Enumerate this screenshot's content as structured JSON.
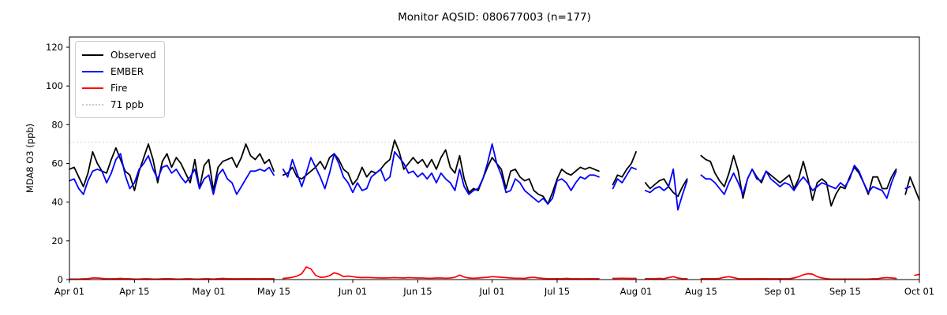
{
  "title": "Monitor AQSID: 080677003 (n=177)",
  "axes": {
    "ylabel": "MDA8 O3 (ppb)",
    "y_ticks": [
      0,
      20,
      40,
      60,
      80,
      100,
      120
    ],
    "x_tick_labels": [
      "Apr 01",
      "Apr 15",
      "May 01",
      "May 15",
      "Jun 01",
      "Jun 15",
      "Jul 01",
      "Jul 15",
      "Aug 01",
      "Aug 15",
      "Sep 01",
      "Sep 15",
      "Oct 01"
    ],
    "x_tick_days": [
      0,
      14,
      30,
      44,
      61,
      75,
      91,
      105,
      122,
      136,
      153,
      167,
      183
    ]
  },
  "legend": [
    {
      "label": "Observed",
      "color": "#000000",
      "style": "solid"
    },
    {
      "label": "EMBER",
      "color": "#0000ff",
      "style": "solid"
    },
    {
      "label": "Fire",
      "color": "#ff0000",
      "style": "solid"
    },
    {
      "label": "71 ppb",
      "color": "#c8c8c8",
      "style": "dotted"
    }
  ],
  "chart_data": {
    "type": "line",
    "title": "Monitor AQSID: 080677003 (n=177)",
    "xlabel": "",
    "ylabel": "MDA8 O3 (ppb)",
    "ylim": [
      0,
      125
    ],
    "grid": false,
    "legend_position": "upper left",
    "x_unit": "days since Apr 01 (daily values, Apr 01 - Oct 01; null = missing day)",
    "reference_line": {
      "value": 71,
      "label": "71 ppb",
      "color": "#c8c8c8",
      "style": "dotted"
    },
    "series": [
      {
        "name": "Observed",
        "color": "#000000",
        "values": [
          57,
          58,
          53,
          48,
          55,
          66,
          60,
          56,
          55,
          62,
          68,
          62,
          56,
          54,
          46,
          56,
          63,
          70,
          62,
          50,
          61,
          65,
          58,
          63,
          60,
          55,
          50,
          62,
          47,
          59,
          62,
          46,
          58,
          61,
          62,
          63,
          58,
          63,
          70,
          64,
          62,
          65,
          60,
          62,
          56,
          null,
          54,
          55,
          58,
          53,
          52,
          54,
          56,
          58,
          61,
          57,
          63,
          65,
          62,
          57,
          55,
          49,
          52,
          58,
          53,
          56,
          55,
          57,
          60,
          62,
          72,
          66,
          57,
          60,
          63,
          60,
          62,
          58,
          62,
          57,
          63,
          67,
          58,
          55,
          64,
          52,
          45,
          47,
          46,
          52,
          58,
          63,
          60,
          57,
          47,
          56,
          57,
          53,
          51,
          52,
          46,
          44,
          43,
          39,
          45,
          52,
          57,
          55,
          54,
          56,
          58,
          57,
          58,
          57,
          56,
          null,
          null,
          49,
          54,
          53,
          57,
          60,
          66,
          null,
          50,
          47,
          49,
          51,
          52,
          48,
          45,
          43,
          48,
          52,
          null,
          null,
          64,
          62,
          61,
          55,
          51,
          48,
          55,
          64,
          56,
          42,
          52,
          57,
          53,
          50,
          56,
          54,
          52,
          50,
          52,
          54,
          47,
          52,
          61,
          52,
          41,
          50,
          52,
          50,
          38,
          44,
          48,
          47,
          53,
          58,
          55,
          50,
          44,
          53,
          53,
          47,
          47,
          53,
          57,
          null,
          44,
          53,
          47,
          41
        ]
      },
      {
        "name": "EMBER",
        "color": "#0000ff",
        "values": [
          51,
          52,
          47,
          44,
          51,
          56,
          57,
          56,
          50,
          55,
          62,
          65,
          54,
          47,
          50,
          57,
          60,
          64,
          57,
          52,
          58,
          59,
          55,
          57,
          53,
          50,
          53,
          57,
          47,
          52,
          54,
          44,
          54,
          57,
          52,
          50,
          44,
          48,
          52,
          56,
          56,
          57,
          56,
          58,
          54,
          null,
          57,
          53,
          62,
          55,
          48,
          55,
          63,
          58,
          53,
          47,
          55,
          65,
          60,
          53,
          50,
          45,
          50,
          46,
          47,
          53,
          55,
          57,
          51,
          53,
          66,
          63,
          60,
          55,
          56,
          53,
          55,
          52,
          55,
          50,
          55,
          52,
          50,
          46,
          57,
          48,
          44,
          46,
          47,
          52,
          60,
          70,
          60,
          54,
          45,
          46,
          52,
          50,
          46,
          44,
          42,
          40,
          42,
          39,
          42,
          51,
          52,
          50,
          46,
          50,
          53,
          52,
          54,
          54,
          53,
          null,
          null,
          47,
          52,
          50,
          54,
          58,
          57,
          null,
          46,
          45,
          47,
          48,
          46,
          48,
          57,
          36,
          44,
          51,
          null,
          null,
          54,
          52,
          52,
          50,
          47,
          44,
          50,
          55,
          50,
          44,
          52,
          57,
          52,
          51,
          56,
          52,
          50,
          48,
          50,
          49,
          46,
          50,
          53,
          50,
          46,
          48,
          50,
          49,
          48,
          47,
          50,
          48,
          52,
          59,
          56,
          50,
          45,
          48,
          47,
          46,
          42,
          50,
          56,
          null,
          47,
          48,
          null,
          null
        ]
      },
      {
        "name": "Fire",
        "color": "#ff0000",
        "values": [
          0.3,
          0.3,
          0.3,
          0.4,
          0.5,
          0.8,
          0.8,
          0.6,
          0.4,
          0.4,
          0.5,
          0.6,
          0.5,
          0.4,
          0.3,
          0.3,
          0.4,
          0.4,
          0.3,
          0.3,
          0.4,
          0.5,
          0.4,
          0.3,
          0.3,
          0.4,
          0.4,
          0.3,
          0.3,
          0.4,
          0.4,
          0.3,
          0.5,
          0.6,
          0.5,
          0.4,
          0.4,
          0.4,
          0.5,
          0.5,
          0.4,
          0.4,
          0.5,
          0.5,
          0.5,
          null,
          0.6,
          0.8,
          1.2,
          1.8,
          3.0,
          6.5,
          5.5,
          2.2,
          1.2,
          1.3,
          2.0,
          3.5,
          2.8,
          1.6,
          1.8,
          1.5,
          1.2,
          1.0,
          1.1,
          1.0,
          0.9,
          0.8,
          0.8,
          0.9,
          1.0,
          0.9,
          0.8,
          1.0,
          0.9,
          0.8,
          0.8,
          0.7,
          0.7,
          0.8,
          0.8,
          0.7,
          0.8,
          1.2,
          2.3,
          1.3,
          0.8,
          0.7,
          0.8,
          1.0,
          1.2,
          1.5,
          1.4,
          1.2,
          1.0,
          0.8,
          0.7,
          0.7,
          0.6,
          1.0,
          1.2,
          0.8,
          0.6,
          0.5,
          0.5,
          0.5,
          0.5,
          0.6,
          0.5,
          0.5,
          0.4,
          0.4,
          0.5,
          0.5,
          0.5,
          null,
          null,
          0.6,
          0.6,
          0.7,
          0.6,
          0.6,
          0.6,
          null,
          0.5,
          0.5,
          0.5,
          0.6,
          0.5,
          1.0,
          1.5,
          0.8,
          0.5,
          0.5,
          null,
          null,
          0.5,
          0.5,
          0.5,
          0.5,
          0.6,
          1.2,
          1.5,
          1.0,
          0.5,
          0.4,
          0.4,
          0.4,
          0.4,
          0.5,
          0.5,
          0.4,
          0.4,
          0.4,
          0.4,
          0.4,
          0.8,
          1.5,
          2.5,
          3.0,
          2.8,
          1.5,
          0.8,
          0.5,
          0.3,
          0.3,
          0.3,
          0.3,
          0.3,
          0.3,
          0.3,
          0.3,
          0.3,
          0.4,
          0.5,
          0.8,
          1.0,
          0.8,
          0.6,
          null,
          1.8,
          null,
          2.2,
          2.7
        ]
      }
    ]
  }
}
